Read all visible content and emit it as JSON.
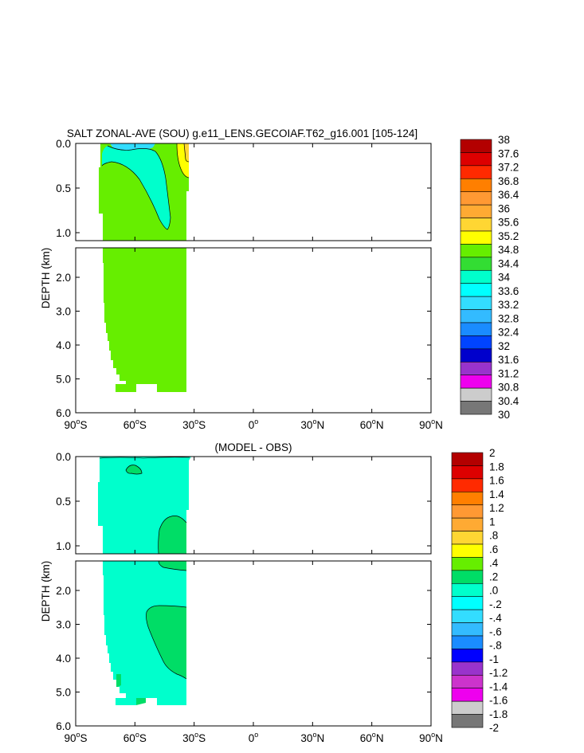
{
  "chart_data": [
    {
      "type": "heatmap",
      "title": "SALT ZONAL-AVE (SOU) g.e11_LENS.GECOIAF.T62_g16.001 [105-124]",
      "ylabel": "DEPTH (km)",
      "xlim": [
        -90,
        90
      ],
      "upper_yticks": [
        {
          "value": 0.0,
          "label": "0.0"
        },
        {
          "value": 0.5,
          "label": "0.5"
        },
        {
          "value": 1.0,
          "label": "1.0"
        }
      ],
      "lower_yticks": [
        {
          "value": 2.0,
          "label": "2.0"
        },
        {
          "value": 3.0,
          "label": "3.0"
        },
        {
          "value": 4.0,
          "label": "4.0"
        },
        {
          "value": 5.0,
          "label": "5.0"
        },
        {
          "value": 6.0,
          "label": "6.0"
        }
      ],
      "xticks": [
        {
          "value": -90,
          "deg": "90",
          "hemi": "S"
        },
        {
          "value": -60,
          "deg": "60",
          "hemi": "S"
        },
        {
          "value": -30,
          "deg": "30",
          "hemi": "S"
        },
        {
          "value": 0,
          "deg": "0",
          "hemi": ""
        },
        {
          "value": 30,
          "deg": "30",
          "hemi": "N"
        },
        {
          "value": 60,
          "deg": "60",
          "hemi": "N"
        },
        {
          "value": 90,
          "deg": "90",
          "hemi": "N"
        }
      ],
      "colorbar": {
        "labels": [
          "38",
          "37.6",
          "37.2",
          "36.8",
          "36.4",
          "36",
          "35.6",
          "35.2",
          "34.8",
          "34.4",
          "34",
          "33.6",
          "33.2",
          "32.8",
          "32.4",
          "32",
          "31.6",
          "31.2",
          "30.8",
          "30.4",
          "30"
        ],
        "colors": [
          "#b30000",
          "#dd0000",
          "#ff2a00",
          "#ff7f00",
          "#ff9933",
          "#ffaa33",
          "#ffd633",
          "#ffff00",
          "#66ee00",
          "#33dd33",
          "#00ffcc",
          "#00ffff",
          "#33ddff",
          "#33bbff",
          "#1a8cff",
          "#0044ff",
          "#0000cc",
          "#9933cc",
          "#ee00ee",
          "#cccccc",
          "#777777"
        ]
      }
    },
    {
      "type": "heatmap",
      "title": "(MODEL - OBS)",
      "ylabel": "DEPTH (km)",
      "xlim": [
        -90,
        90
      ],
      "upper_yticks": [
        {
          "value": 0.0,
          "label": "0.0"
        },
        {
          "value": 0.5,
          "label": "0.5"
        },
        {
          "value": 1.0,
          "label": "1.0"
        }
      ],
      "lower_yticks": [
        {
          "value": 2.0,
          "label": "2.0"
        },
        {
          "value": 3.0,
          "label": "3.0"
        },
        {
          "value": 4.0,
          "label": "4.0"
        },
        {
          "value": 5.0,
          "label": "5.0"
        },
        {
          "value": 6.0,
          "label": "6.0"
        }
      ],
      "xticks": [
        {
          "value": -90,
          "deg": "90",
          "hemi": "S"
        },
        {
          "value": -60,
          "deg": "60",
          "hemi": "S"
        },
        {
          "value": -30,
          "deg": "30",
          "hemi": "S"
        },
        {
          "value": 0,
          "deg": "0",
          "hemi": ""
        },
        {
          "value": 30,
          "deg": "30",
          "hemi": "N"
        },
        {
          "value": 60,
          "deg": "60",
          "hemi": "N"
        },
        {
          "value": 90,
          "deg": "90",
          "hemi": "N"
        }
      ],
      "colorbar": {
        "labels": [
          "2",
          "1.8",
          "1.6",
          "1.4",
          "1.2",
          "1",
          ".8",
          ".6",
          ".4",
          ".2",
          ".0",
          "-.2",
          "-.4",
          "-.6",
          "-.8",
          "-1",
          "-1.2",
          "-1.4",
          "-1.6",
          "-1.8",
          "-2"
        ],
        "colors": [
          "#b30000",
          "#dd0000",
          "#ff2a00",
          "#ff7f00",
          "#ff9933",
          "#ffaa33",
          "#ffd633",
          "#ffff00",
          "#66ee00",
          "#00dd66",
          "#00ffcc",
          "#00ffff",
          "#33ddff",
          "#33bbff",
          "#1a8cff",
          "#0000ff",
          "#9933cc",
          "#cc33cc",
          "#ee00ee",
          "#cccccc",
          "#777777"
        ]
      }
    }
  ]
}
